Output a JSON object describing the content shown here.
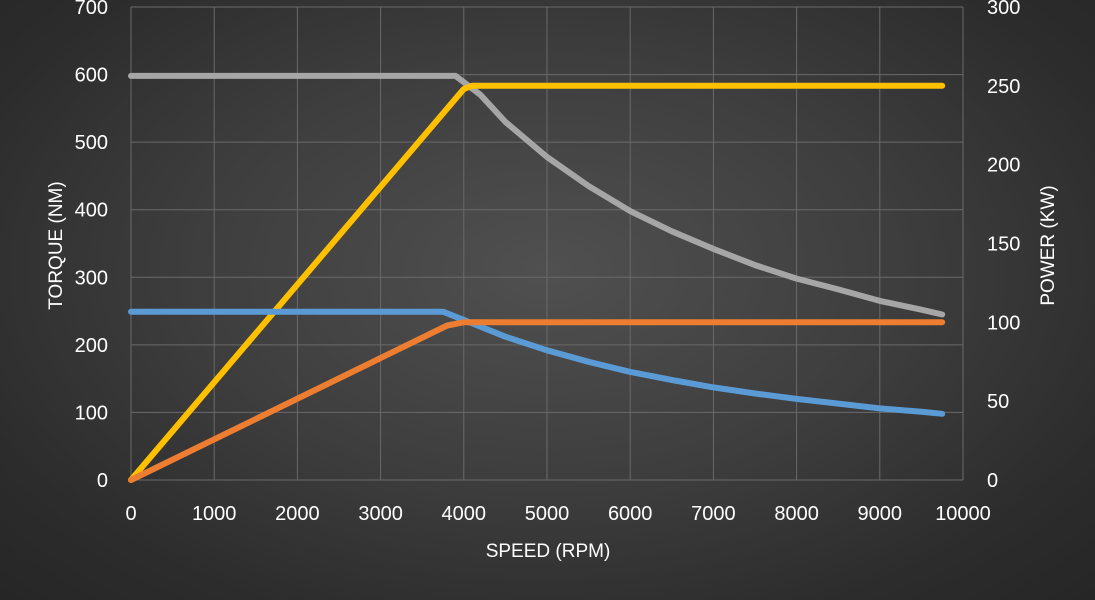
{
  "chart_data": {
    "type": "line",
    "title": "",
    "xlabel": "SPEED (RPM)",
    "ylabel": "TORQUE (NM)",
    "y2label": "POWER (KW)",
    "xlim": [
      0,
      10000
    ],
    "ylim": [
      0,
      700
    ],
    "y2lim": [
      0,
      300
    ],
    "x_ticks": [
      0,
      1000,
      2000,
      3000,
      4000,
      5000,
      6000,
      7000,
      8000,
      9000,
      10000
    ],
    "y_ticks": [
      0,
      100,
      200,
      300,
      400,
      500,
      600,
      700
    ],
    "y2_ticks": [
      0,
      50,
      100,
      150,
      200,
      250,
      300
    ],
    "grid": true,
    "legend": "none",
    "series": [
      {
        "color": "#a6a6a6",
        "axis": "left",
        "x": [
          0,
          1000,
          2000,
          3000,
          3900,
          4200,
          4500,
          5000,
          5500,
          6000,
          6500,
          7000,
          7500,
          8000,
          8500,
          9000,
          9500,
          9750
        ],
        "y": [
          598,
          598,
          598,
          598,
          598,
          570,
          530,
          478,
          435,
          398,
          368,
          342,
          318,
          298,
          282,
          265,
          252,
          245
        ]
      },
      {
        "color": "#ffc000",
        "axis": "right",
        "x": [
          0,
          4000,
          4100,
          9750
        ],
        "y": [
          0,
          248,
          250,
          250
        ]
      },
      {
        "color": "#5b9bd5",
        "axis": "left",
        "x": [
          0,
          1000,
          2000,
          3000,
          3750,
          4000,
          4500,
          5000,
          5500,
          6000,
          6500,
          7000,
          7500,
          8000,
          8500,
          9000,
          9500,
          9750
        ],
        "y": [
          249,
          249,
          249,
          249,
          249,
          237,
          212,
          192,
          175,
          160,
          148,
          137,
          128,
          120,
          113,
          106,
          101,
          98
        ]
      },
      {
        "color": "#ed7d31",
        "axis": "right",
        "x": [
          0,
          3800,
          4000,
          9750
        ],
        "y": [
          0,
          98,
          100,
          100
        ]
      }
    ]
  }
}
